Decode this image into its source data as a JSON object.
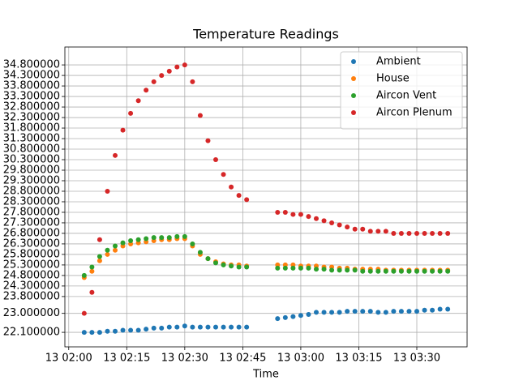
{
  "chart_data": {
    "type": "scatter",
    "title": "Temperature Readings",
    "x_label": "Time",
    "x": [
      "13 02:04",
      "13 02:06",
      "13 02:08",
      "13 02:10",
      "13 02:12",
      "13 02:14",
      "13 02:16",
      "13 02:18",
      "13 02:20",
      "13 02:22",
      "13 02:24",
      "13 02:26",
      "13 02:28",
      "13 02:30",
      "13 02:32",
      "13 02:34",
      "13 02:36",
      "13 02:38",
      "13 02:40",
      "13 02:42",
      "13 02:44",
      "13 02:46",
      "13 02:54",
      "13 02:56",
      "13 02:58",
      "13 03:00",
      "13 03:02",
      "13 03:04",
      "13 03:06",
      "13 03:08",
      "13 03:10",
      "13 03:12",
      "13 03:14",
      "13 03:16",
      "13 03:18",
      "13 03:20",
      "13 03:22",
      "13 03:24",
      "13 03:26",
      "13 03:28",
      "13 03:30",
      "13 03:32",
      "13 03:34",
      "13 03:36",
      "13 03:38"
    ],
    "series": [
      {
        "name": "Ambient",
        "color": "#1f77b4",
        "values": [
          22.1,
          22.1,
          22.1,
          22.15,
          22.15,
          22.2,
          22.2,
          22.2,
          22.25,
          22.3,
          22.3,
          22.35,
          22.35,
          22.4,
          22.35,
          22.35,
          22.35,
          22.35,
          22.35,
          22.35,
          22.35,
          22.35,
          22.75,
          22.8,
          22.85,
          22.9,
          22.95,
          23.05,
          23.05,
          23.05,
          23.05,
          23.1,
          23.1,
          23.1,
          23.1,
          23.05,
          23.05,
          23.1,
          23.1,
          23.1,
          23.1,
          23.15,
          23.15,
          23.2,
          23.2
        ]
      },
      {
        "name": "House",
        "color": "#ff7f0e",
        "values": [
          24.7,
          25.0,
          25.5,
          25.8,
          26.0,
          26.2,
          26.3,
          26.35,
          26.4,
          26.45,
          26.5,
          26.5,
          26.55,
          26.55,
          26.2,
          25.8,
          25.6,
          25.45,
          25.35,
          25.3,
          25.3,
          25.25,
          25.3,
          25.3,
          25.3,
          25.25,
          25.25,
          25.25,
          25.2,
          25.2,
          25.15,
          25.15,
          25.1,
          25.1,
          25.1,
          25.1,
          25.05,
          25.05,
          25.05,
          25.05,
          25.05,
          25.05,
          25.05,
          25.05,
          25.05
        ]
      },
      {
        "name": "Aircon Vent",
        "color": "#2ca02c",
        "values": [
          24.8,
          25.2,
          25.7,
          26.0,
          26.2,
          26.35,
          26.45,
          26.5,
          26.55,
          26.6,
          26.6,
          26.6,
          26.65,
          26.65,
          26.3,
          25.9,
          25.6,
          25.4,
          25.3,
          25.25,
          25.2,
          25.2,
          25.15,
          25.15,
          25.15,
          25.15,
          25.15,
          25.1,
          25.1,
          25.05,
          25.05,
          25.05,
          25.05,
          25.0,
          25.0,
          25.0,
          25.0,
          25.0,
          25.0,
          25.0,
          25.0,
          25.0,
          25.0,
          25.0,
          25.0
        ]
      },
      {
        "name": "Aircon Plenum",
        "color": "#d62728",
        "values": [
          23.0,
          24.0,
          26.5,
          28.8,
          30.5,
          31.7,
          32.5,
          33.1,
          33.6,
          34.0,
          34.3,
          34.5,
          34.7,
          34.8,
          34.0,
          32.4,
          31.2,
          30.3,
          29.6,
          29.0,
          28.6,
          28.4,
          27.8,
          27.8,
          27.7,
          27.7,
          27.6,
          27.5,
          27.4,
          27.3,
          27.2,
          27.1,
          27.0,
          27.0,
          26.9,
          26.9,
          26.9,
          26.8,
          26.8,
          26.8,
          26.8,
          26.8,
          26.8,
          26.8,
          26.8
        ]
      }
    ],
    "xlim": [
      "13 01:59",
      "13 03:43"
    ],
    "xticks": [
      "13 02:00",
      "13 02:15",
      "13 02:30",
      "13 02:45",
      "13 03:00",
      "13 03:15",
      "13 03:30"
    ],
    "ylim": [
      21.41,
      35.65
    ],
    "yticks": [
      {
        "value": 22.1,
        "label": "22.100000"
      },
      {
        "value": 23.0,
        "label": "23.000000"
      },
      {
        "value": 23.8,
        "label": "23.800000"
      },
      {
        "value": 24.3,
        "label": "24.300000"
      },
      {
        "value": 24.8,
        "label": "24.800000"
      },
      {
        "value": 25.3,
        "label": "25.300000"
      },
      {
        "value": 25.8,
        "label": "25.800000"
      },
      {
        "value": 26.3,
        "label": "26.300000"
      },
      {
        "value": 26.8,
        "label": "26.800000"
      },
      {
        "value": 27.3,
        "label": "27.300000"
      },
      {
        "value": 27.8,
        "label": "27.800000"
      },
      {
        "value": 28.3,
        "label": "28.300000"
      },
      {
        "value": 28.8,
        "label": "28.800000"
      },
      {
        "value": 29.3,
        "label": "29.300000"
      },
      {
        "value": 29.8,
        "label": "29.800000"
      },
      {
        "value": 30.3,
        "label": "30.300000"
      },
      {
        "value": 30.8,
        "label": "30.800000"
      },
      {
        "value": 31.3,
        "label": "31.300000"
      },
      {
        "value": 31.8,
        "label": "31.800000"
      },
      {
        "value": 32.3,
        "label": "32.300000"
      },
      {
        "value": 32.8,
        "label": "32.800000"
      },
      {
        "value": 33.3,
        "label": "33.300000"
      },
      {
        "value": 33.8,
        "label": "33.800000"
      },
      {
        "value": 34.3,
        "label": "34.300000"
      },
      {
        "value": 34.8,
        "label": "34.800000"
      }
    ],
    "grid": true,
    "legend": "upper right"
  }
}
